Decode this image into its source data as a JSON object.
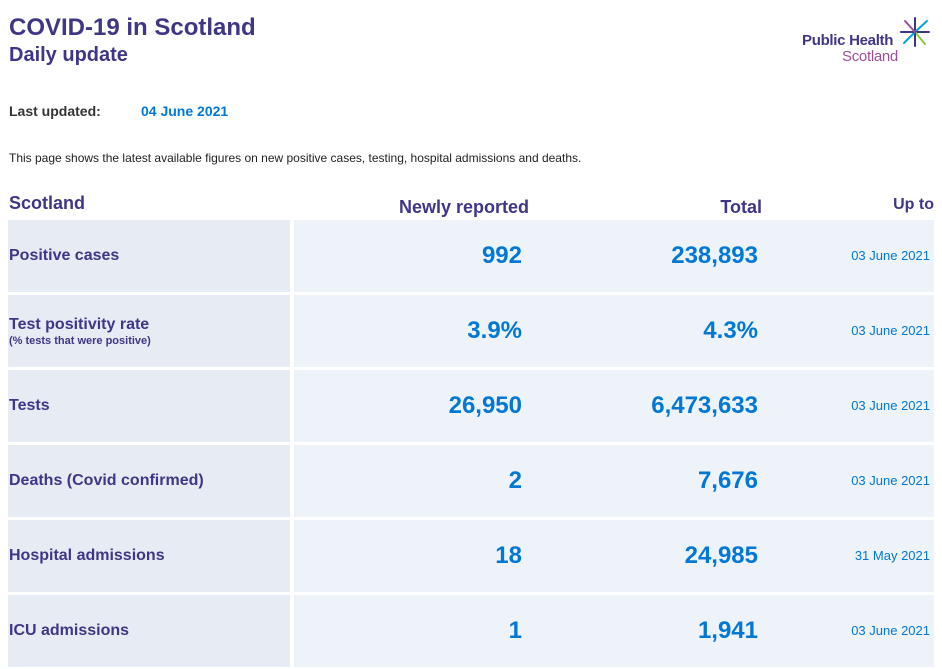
{
  "header": {
    "title": "COVID-19 in Scotland",
    "subtitle": "Daily update"
  },
  "logo": {
    "line1": "Public Health",
    "line2": "Scotland",
    "icon": "star-burst-icon"
  },
  "last_updated": {
    "label": "Last updated:",
    "value": "04 June 2021"
  },
  "description": "This page shows the latest available figures on new positive cases, testing, hospital admissions and deaths.",
  "table": {
    "columns": {
      "region": "Scotland",
      "newly_reported": "Newly reported",
      "total": "Total",
      "up_to": "Up to"
    },
    "rows": [
      {
        "label": "Positive cases",
        "sublabel": "",
        "newly_reported": "992",
        "total": "238,893",
        "up_to": "03 June 2021"
      },
      {
        "label": "Test positivity rate",
        "sublabel": "(% tests that were positive)",
        "newly_reported": "3.9%",
        "total": "4.3%",
        "up_to": "03 June 2021"
      },
      {
        "label": "Tests",
        "sublabel": "",
        "newly_reported": "26,950",
        "total": "6,473,633",
        "up_to": "03 June 2021"
      },
      {
        "label": "Deaths (Covid confirmed)",
        "sublabel": "",
        "newly_reported": "2",
        "total": "7,676",
        "up_to": "03 June 2021"
      },
      {
        "label": "Hospital admissions",
        "sublabel": "",
        "newly_reported": "18",
        "total": "24,985",
        "up_to": "31 May 2021"
      },
      {
        "label": "ICU admissions",
        "sublabel": "",
        "newly_reported": "1",
        "total": "1,941",
        "up_to": "03 June 2021"
      }
    ]
  },
  "colors": {
    "brand_purple": "#3f3685",
    "value_blue": "#0078d4",
    "logo_magenta": "#9b4f96"
  }
}
